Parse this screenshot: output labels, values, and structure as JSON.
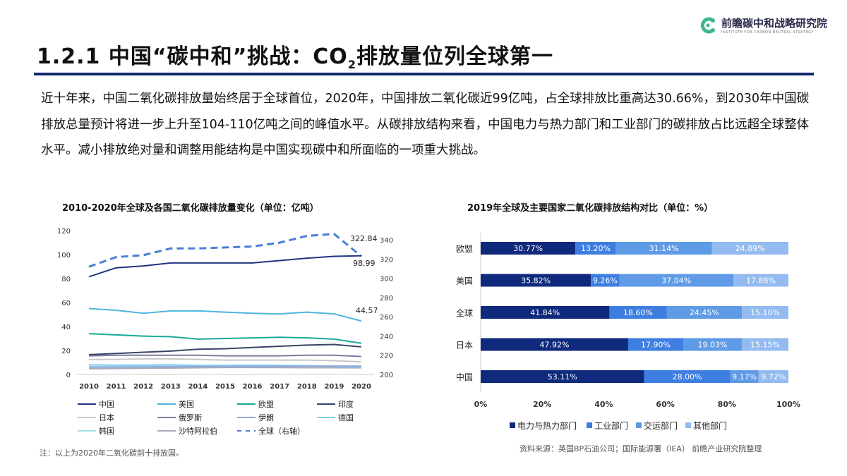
{
  "header": {
    "title_pre": "1.2.1 中国“碳中和”挑战：CO",
    "title_sub": "2",
    "title_post": "排放量位列全球第一",
    "logo_cn": "前瞻碳中和战略研究院",
    "logo_en": "INSTITUTE FOR CARBON NEUTRAL STRATEGY",
    "brand_color": "#3cb88a",
    "rule_color": "#0e2a6b"
  },
  "paragraph": "近十年来，中国二氧化碳排放量始终居于全球首位，2020年，中国排放二氧化碳近99亿吨，占全球排放比重高达30.66%，到2030年中国碳排放总量预计将进一步上升至104-110亿吨之间的峰值水平。从碳排放结构来看，中国电力与热力部门和工业部门的碳排放占比远超全球整体水平。减小排放绝对量和调整用能结构是中国实现碳中和所面临的一项重大挑战。",
  "footer": {
    "note": "注：以上为2020年二氧化碳前十排放国。",
    "source": "资料来源：英国BP石油公司；国际能源署（IEA） 前瞻产业研究院整理"
  },
  "chart_data": [
    {
      "type": "line",
      "title": "2010-2020年全球及各国二氧化碳排放量变化（单位：亿吨）",
      "x": [
        "2010",
        "2011",
        "2012",
        "2013",
        "2014",
        "2015",
        "2016",
        "2017",
        "2018",
        "2019",
        "2020"
      ],
      "ylim": [
        0,
        120
      ],
      "yticks": [
        "0",
        "20",
        "40",
        "60",
        "80",
        "100",
        "120"
      ],
      "y2lim": [
        200,
        340
      ],
      "y2ticks": [
        "200",
        "220",
        "240",
        "260",
        "280",
        "300",
        "320",
        "340"
      ],
      "grid": false,
      "legend_placement": "bottom",
      "series": [
        {
          "name": "中国",
          "color": "#1f3580",
          "values": [
            81.5,
            89,
            90.5,
            93,
            93,
            93,
            93,
            95,
            97,
            98.5,
            98.99
          ],
          "label": "98.99"
        },
        {
          "name": "美国",
          "color": "#4fb6dc",
          "values": [
            55,
            53.5,
            51,
            53,
            53,
            52,
            51,
            50.5,
            52,
            50.5,
            44.57
          ],
          "label": "44.57"
        },
        {
          "name": "欧盟",
          "color": "#1aa89a",
          "values": [
            34,
            33,
            32,
            31.5,
            29.5,
            30,
            30.5,
            31,
            30.5,
            29.5,
            26
          ]
        },
        {
          "name": "印度",
          "color": "#3a4466",
          "values": [
            16.5,
            17.5,
            18.5,
            19.5,
            21,
            21.5,
            22.5,
            23.5,
            24.5,
            25,
            23
          ]
        },
        {
          "name": "日本",
          "color": "#c8c8c8",
          "values": [
            12.5,
            12.5,
            13,
            13,
            12.5,
            12,
            12,
            12,
            12,
            11.5,
            10.5
          ]
        },
        {
          "name": "俄罗斯",
          "color": "#7d7aa0",
          "values": [
            15.5,
            16,
            16,
            16,
            16,
            15.5,
            15.5,
            15.5,
            16,
            16,
            15
          ]
        },
        {
          "name": "伊朗",
          "color": "#8fa9e0",
          "values": [
            6,
            6.2,
            6.3,
            6.5,
            6.6,
            6.6,
            6.7,
            6.8,
            6.9,
            7,
            7
          ]
        },
        {
          "name": "德国",
          "color": "#7fd0f0",
          "values": [
            8,
            7.8,
            7.9,
            8,
            7.6,
            7.6,
            7.7,
            7.6,
            7.3,
            6.8,
            6.3
          ]
        },
        {
          "name": "韩国",
          "color": "#9fe0e0",
          "values": [
            6.5,
            6.8,
            6.8,
            6.8,
            6.8,
            6.8,
            6.9,
            7,
            7.1,
            6.9,
            6.6
          ]
        },
        {
          "name": "沙特阿拉伯",
          "color": "#aaaabb",
          "values": [
            4.8,
            4.9,
            5.2,
            5.3,
            5.6,
            5.8,
            5.8,
            5.7,
            5.6,
            5.6,
            5.5
          ]
        },
        {
          "name": "全球（右轴）",
          "color": "#4a7fd4",
          "dashed": true,
          "axis": "right",
          "values": [
            312,
            322,
            324,
            331,
            331,
            332,
            333,
            337,
            344,
            346,
            322.84
          ],
          "label": "322.84"
        }
      ]
    },
    {
      "type": "bar",
      "stacked": true,
      "orientation": "horizontal",
      "title": "2019年全球及主要国家二氧化碳排放结构对比（单位：%）",
      "categories": [
        "欧盟",
        "美国",
        "全球",
        "日本",
        "中国"
      ],
      "xlim": [
        0,
        100
      ],
      "xticks": [
        "0%",
        "20%",
        "40%",
        "60%",
        "80%",
        "100%"
      ],
      "legend_placement": "bottom",
      "series": [
        {
          "name": "电力与热力部门",
          "color": "#0f2a7c",
          "values": [
            30.77,
            35.82,
            41.84,
            47.92,
            53.11
          ]
        },
        {
          "name": "工业部门",
          "color": "#3d7ee0",
          "values": [
            13.2,
            9.26,
            18.6,
            17.9,
            28.0
          ]
        },
        {
          "name": "交运部门",
          "color": "#5f9ae6",
          "values": [
            31.14,
            37.04,
            24.45,
            19.03,
            9.17
          ]
        },
        {
          "name": "其他部门",
          "color": "#93bbf0",
          "values": [
            24.89,
            17.88,
            15.1,
            15.15,
            9.72
          ]
        }
      ]
    }
  ]
}
